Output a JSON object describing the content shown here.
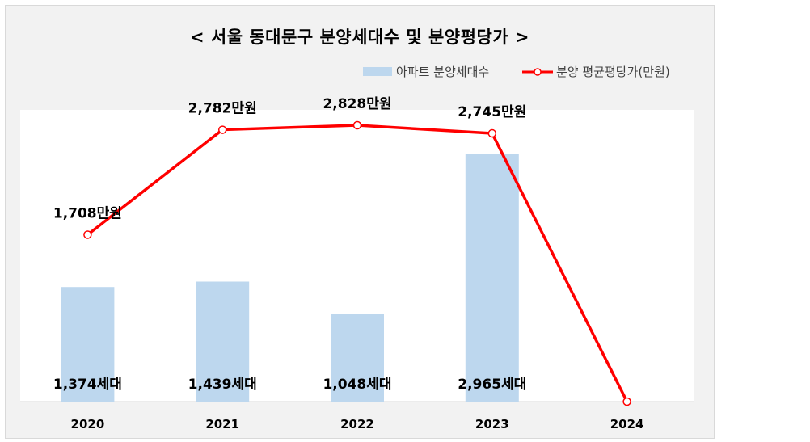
{
  "chart_data": {
    "type": "bar+line",
    "title": "< 서울 동대문구 분양세대수 및 분양평당가 >",
    "categories": [
      "2020",
      "2021",
      "2022",
      "2023",
      "2024"
    ],
    "series": [
      {
        "name": "아파트 분양세대수",
        "type": "bar",
        "color": "#bdd7ee",
        "values": [
          1374,
          1439,
          1048,
          2965,
          0
        ],
        "labels": [
          "1,374세대",
          "1,439세대",
          "1,048세대",
          "2,965세대",
          ""
        ]
      },
      {
        "name": "분양 평균평당가(만원)",
        "type": "line",
        "color": "#ff0000",
        "values": [
          1708,
          2782,
          2828,
          2745,
          0
        ],
        "labels": [
          "1,708만원",
          "2,782만원",
          "2,828만원",
          "2,745만원",
          ""
        ]
      }
    ],
    "legend": "top-right",
    "grid": false
  }
}
